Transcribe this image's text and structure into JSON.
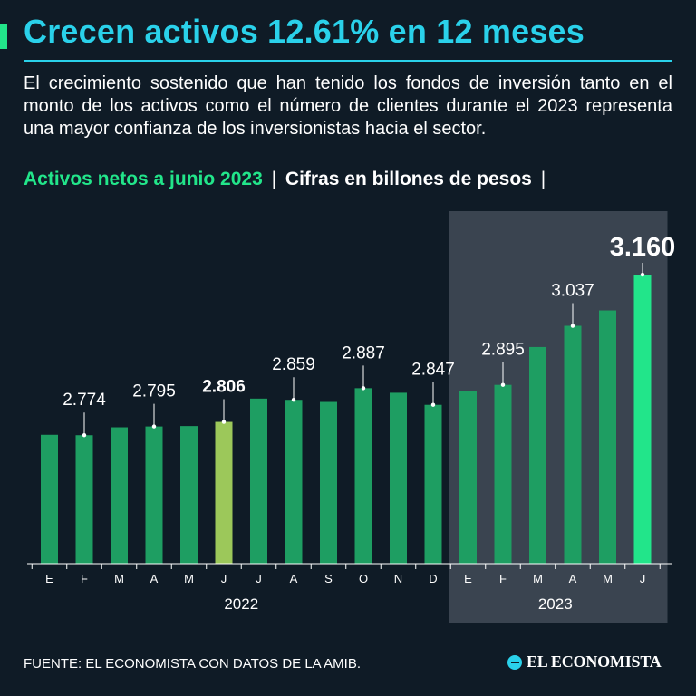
{
  "header": {
    "title": "Crecen activos 12.61% en 12 meses",
    "intro": "El crecimiento sostenido que han tenido los fondos de inversión tanto en el monto de los activos como el número de clientes durante el 2023 representa una mayor confianza de los inversionistas hacia el sector.",
    "subtitle_accent": "Activos netos a junio 2023",
    "subtitle_sep": "|",
    "subtitle_units": "Cifras en billones de pesos",
    "subtitle_end": "|"
  },
  "colors": {
    "bar": "#1e9e62",
    "bar_highlight_2022": "#9cc85a",
    "bar_highlight_2023": "#22e58a",
    "title": "#2ad1ea",
    "accent": "#22e58a",
    "panel": "#3a4450"
  },
  "chart_data": {
    "type": "bar",
    "title": "Activos netos a junio 2023",
    "ylabel": "Cifras en billones de pesos",
    "ylim": [
      2.5,
      3.2
    ],
    "categories": [
      "E",
      "F",
      "M",
      "A",
      "M",
      "J",
      "J",
      "A",
      "S",
      "O",
      "N",
      "D",
      "E",
      "F",
      "M",
      "A",
      "M",
      "J"
    ],
    "years": [
      {
        "label": "2022",
        "start": 0,
        "end": 11
      },
      {
        "label": "2023",
        "start": 12,
        "end": 17
      }
    ],
    "values": [
      2.775,
      2.774,
      2.793,
      2.795,
      2.796,
      2.806,
      2.862,
      2.859,
      2.854,
      2.887,
      2.876,
      2.847,
      2.88,
      2.895,
      2.986,
      3.037,
      3.074,
      3.16
    ],
    "labels": [
      {
        "index": 1,
        "text": "2.774",
        "bold": false
      },
      {
        "index": 3,
        "text": "2.795",
        "bold": false
      },
      {
        "index": 5,
        "text": "2.806",
        "bold": true
      },
      {
        "index": 7,
        "text": "2.859",
        "bold": false
      },
      {
        "index": 9,
        "text": "2.887",
        "bold": false
      },
      {
        "index": 11,
        "text": "2.847",
        "bold": false
      },
      {
        "index": 13,
        "text": "2.895",
        "bold": false
      },
      {
        "index": 15,
        "text": "3.037",
        "bold": false
      },
      {
        "index": 17,
        "text": "3.160",
        "bold": true
      }
    ],
    "highlights": {
      "2022": 5,
      "2023": 17
    }
  },
  "footer": {
    "source": "FUENTE: EL ECONOMISTA CON DATOS DE LA AMIB.",
    "brand": "EL ECONOMISTA"
  }
}
